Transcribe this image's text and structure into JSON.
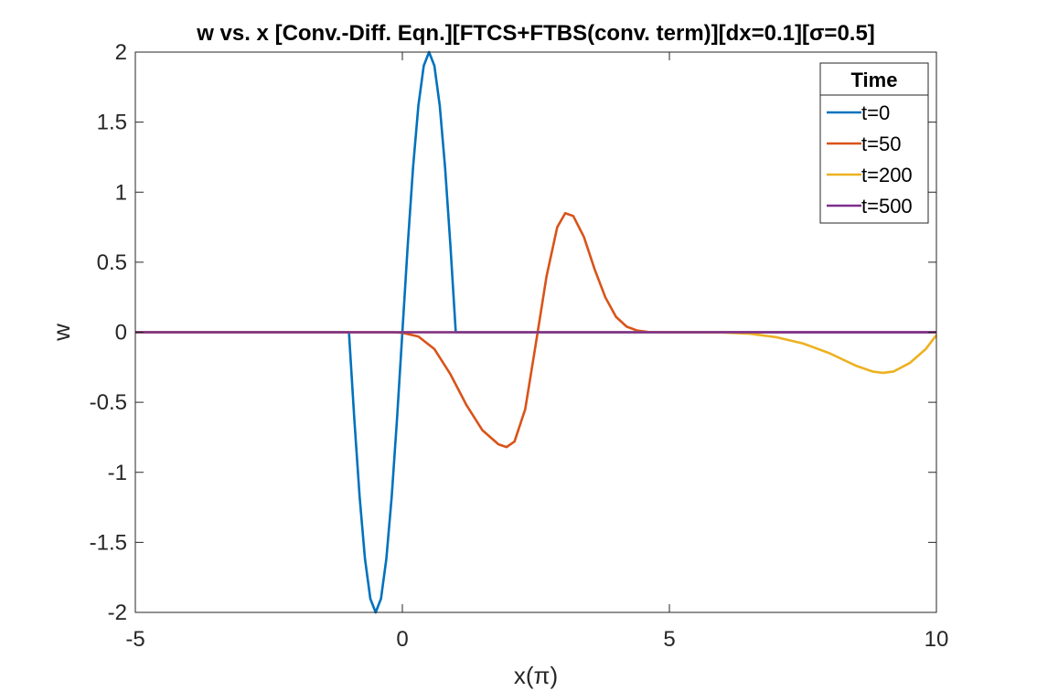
{
  "chart_data": {
    "type": "line",
    "title": "w vs. x [Conv.-Diff. Eqn.][FTCS+FTBS(conv. term)][dx=0.1][σ=0.5]",
    "xlabel": "x(π)",
    "ylabel": "w",
    "xlim": [
      -5,
      10
    ],
    "ylim": [
      -2,
      2
    ],
    "xticks": [
      "-5",
      "0",
      "5",
      "10"
    ],
    "yticks": [
      "-2",
      "-1.5",
      "-1",
      "-0.5",
      "0",
      "0.5",
      "1",
      "1.5",
      "2"
    ],
    "grid": false,
    "legend": {
      "title": "Time",
      "placement": "top-right"
    },
    "series": [
      {
        "name": "t=0",
        "color": "#0072BD",
        "x": [
          -5,
          -1.0,
          -0.9,
          -0.8,
          -0.7,
          -0.6,
          -0.5,
          -0.4,
          -0.3,
          -0.2,
          -0.1,
          0.0,
          0.1,
          0.2,
          0.3,
          0.4,
          0.5,
          0.6,
          0.7,
          0.8,
          0.9,
          1.0,
          10
        ],
        "y": [
          0,
          0,
          -0.618,
          -1.176,
          -1.618,
          -1.902,
          -2.0,
          -1.902,
          -1.618,
          -1.176,
          -0.618,
          0,
          0.618,
          1.176,
          1.618,
          1.902,
          2.0,
          1.902,
          1.618,
          1.176,
          0.618,
          0,
          0
        ]
      },
      {
        "name": "t=50",
        "color": "#D95319",
        "x": [
          -5,
          -0.2,
          0,
          0.3,
          0.6,
          0.9,
          1.2,
          1.5,
          1.8,
          1.95,
          2.1,
          2.3,
          2.5,
          2.7,
          2.9,
          3.05,
          3.2,
          3.4,
          3.6,
          3.8,
          4.0,
          4.2,
          4.4,
          4.6,
          5.0,
          10
        ],
        "y": [
          0,
          0,
          -0.004,
          -0.03,
          -0.12,
          -0.3,
          -0.52,
          -0.7,
          -0.8,
          -0.82,
          -0.78,
          -0.55,
          -0.08,
          0.4,
          0.75,
          0.85,
          0.83,
          0.68,
          0.45,
          0.25,
          0.11,
          0.04,
          0.012,
          0.002,
          0,
          0
        ]
      },
      {
        "name": "t=200",
        "color": "#EDB120",
        "x": [
          -5,
          5.5,
          6.0,
          6.5,
          7.0,
          7.5,
          8.0,
          8.5,
          8.8,
          9.0,
          9.2,
          9.5,
          9.8,
          10.0
        ],
        "y": [
          0,
          0,
          -0.002,
          -0.01,
          -0.035,
          -0.08,
          -0.15,
          -0.24,
          -0.28,
          -0.29,
          -0.28,
          -0.22,
          -0.12,
          -0.02
        ]
      },
      {
        "name": "t=500",
        "color": "#7E2F8E",
        "x": [
          -5,
          10
        ],
        "y": [
          0,
          0
        ]
      }
    ]
  }
}
